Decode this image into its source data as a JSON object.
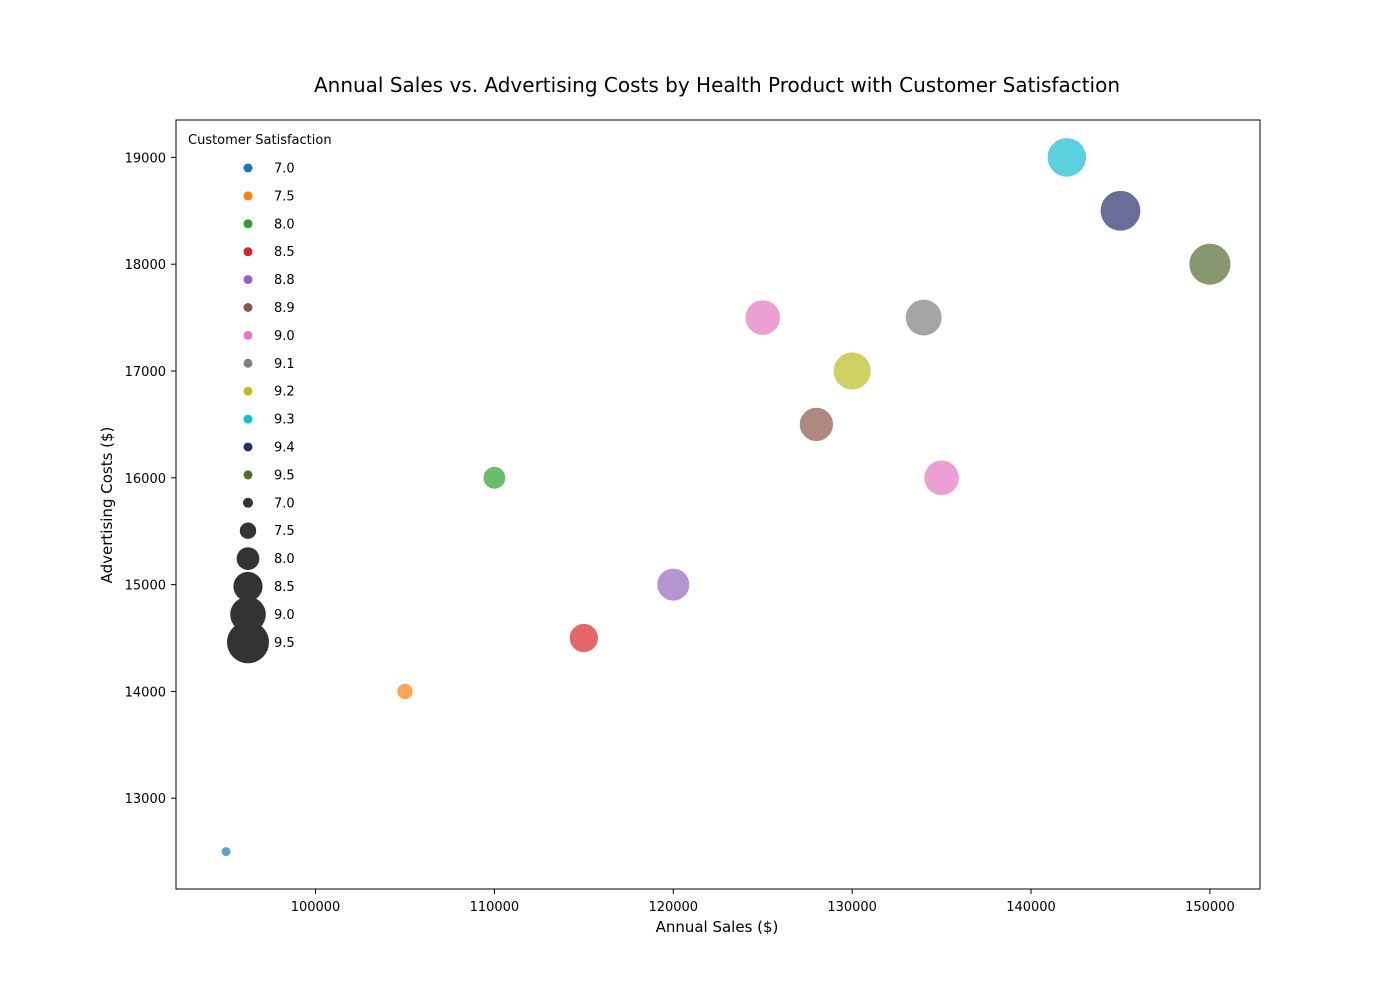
{
  "chart_data": {
    "type": "scatter",
    "title": "Annual Sales vs. Advertising Costs by Health Product with Customer Satisfaction",
    "xlabel": "Annual Sales ($)",
    "ylabel": "Advertising Costs ($)",
    "xlim": [
      92200,
      152800
    ],
    "ylim": [
      12150,
      19350
    ],
    "xticks": [
      100000,
      110000,
      120000,
      130000,
      140000,
      150000
    ],
    "yticks": [
      13000,
      14000,
      15000,
      16000,
      17000,
      18000,
      19000
    ],
    "grid": false,
    "legend": {
      "title": "Customer Satisfaction",
      "placement": "top-left",
      "hue_entries": [
        {
          "label": "7.0",
          "color": "#1f77b4"
        },
        {
          "label": "7.5",
          "color": "#ff7f0e"
        },
        {
          "label": "8.0",
          "color": "#2ca02c"
        },
        {
          "label": "8.5",
          "color": "#d62728"
        },
        {
          "label": "8.8",
          "color": "#9467bd"
        },
        {
          "label": "8.9",
          "color": "#8c564b"
        },
        {
          "label": "9.0",
          "color": "#e377c2"
        },
        {
          "label": "9.1",
          "color": "#7f7f7f"
        },
        {
          "label": "9.2",
          "color": "#bcbd22"
        },
        {
          "label": "9.3",
          "color": "#17becf"
        },
        {
          "label": "9.4",
          "color": "#2a2f6b"
        },
        {
          "label": "9.5",
          "color": "#556b2f"
        }
      ],
      "size_entries": [
        {
          "label": "7.0",
          "satisfaction": 7.0
        },
        {
          "label": "7.5",
          "satisfaction": 7.5
        },
        {
          "label": "8.0",
          "satisfaction": 8.0
        },
        {
          "label": "8.5",
          "satisfaction": 8.5
        },
        {
          "label": "9.0",
          "satisfaction": 9.0
        },
        {
          "label": "9.5",
          "satisfaction": 9.5
        }
      ]
    },
    "points": [
      {
        "x": 95000,
        "y": 12500,
        "satisfaction": 7.0,
        "color": "#1f77b4"
      },
      {
        "x": 105000,
        "y": 14000,
        "satisfaction": 7.5,
        "color": "#ff7f0e"
      },
      {
        "x": 110000,
        "y": 16000,
        "satisfaction": 8.0,
        "color": "#2ca02c"
      },
      {
        "x": 115000,
        "y": 14500,
        "satisfaction": 8.5,
        "color": "#d62728"
      },
      {
        "x": 120000,
        "y": 15000,
        "satisfaction": 8.8,
        "color": "#9467bd"
      },
      {
        "x": 125000,
        "y": 17500,
        "satisfaction": 9.0,
        "color": "#e377c2"
      },
      {
        "x": 128000,
        "y": 16500,
        "satisfaction": 8.9,
        "color": "#8c564b"
      },
      {
        "x": 130000,
        "y": 17000,
        "satisfaction": 9.2,
        "color": "#bcbd22"
      },
      {
        "x": 134000,
        "y": 17500,
        "satisfaction": 9.1,
        "color": "#7f7f7f"
      },
      {
        "x": 135000,
        "y": 16000,
        "satisfaction": 9.0,
        "color": "#e377c2"
      },
      {
        "x": 142000,
        "y": 19000,
        "satisfaction": 9.3,
        "color": "#17becf"
      },
      {
        "x": 145000,
        "y": 18500,
        "satisfaction": 9.4,
        "color": "#2a2f6b"
      },
      {
        "x": 150000,
        "y": 18000,
        "satisfaction": 9.5,
        "color": "#556b2f"
      }
    ],
    "size_key_color": "#333333"
  }
}
